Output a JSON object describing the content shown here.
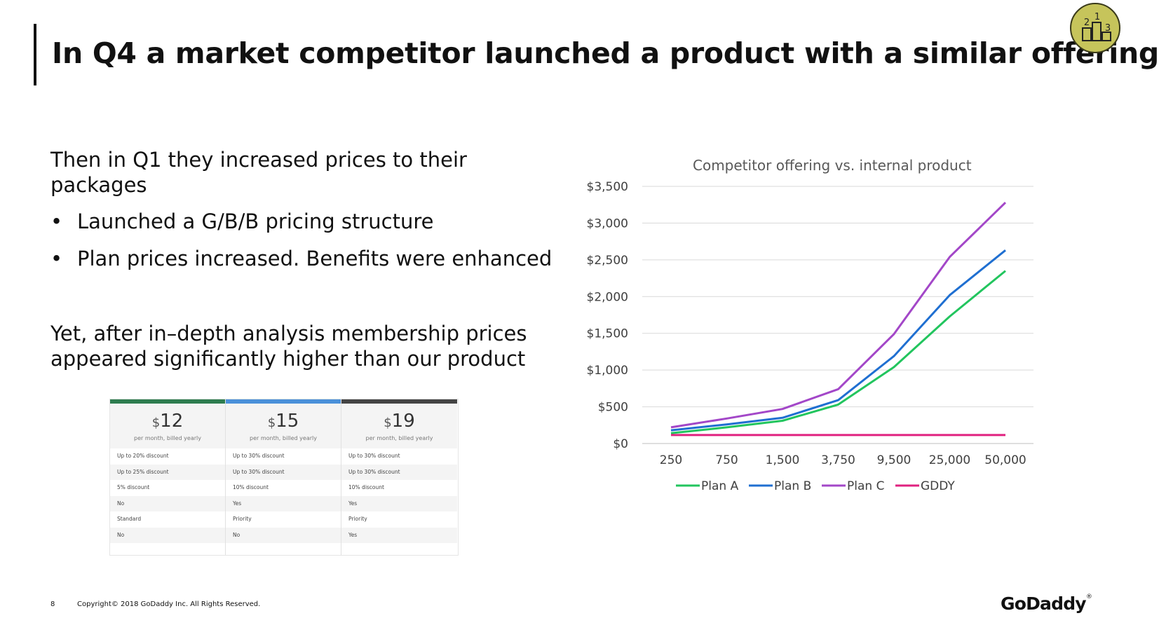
{
  "slide": {
    "title": "In Q4 a market competitor launched a product with a similar offering",
    "intro": "Then in Q1 they increased prices to their packages",
    "bullets": [
      "Launched a G/B/B pricing structure",
      "Plan prices increased. Benefits were enhanced"
    ],
    "conclusion": "Yet, after in–depth analysis membership prices appeared significantly higher than our product",
    "badge_icon": "podium-icon",
    "badge_numbers": [
      "1",
      "2",
      "3"
    ],
    "badge_color": "#c6c45b"
  },
  "pricing_table": {
    "plans": [
      {
        "currency": "$",
        "price": "12",
        "billing": "per month, billed yearly",
        "color": "#2e7d4f",
        "rows": [
          "Up to 20% discount",
          "Up to 25% discount",
          "5% discount",
          "No",
          "Standard",
          "No"
        ]
      },
      {
        "currency": "$",
        "price": "15",
        "billing": "per month, billed yearly",
        "color": "#4a90d9",
        "rows": [
          "Up to 30% discount",
          "Up to 30% discount",
          "10% discount",
          "Yes",
          "Priority",
          "No"
        ]
      },
      {
        "currency": "$",
        "price": "19",
        "billing": "per month, billed yearly",
        "color": "#444444",
        "rows": [
          "Up to 30% discount",
          "Up to 30% discount",
          "10% discount",
          "Yes",
          "Priority",
          "Yes"
        ]
      }
    ]
  },
  "chart_data": {
    "type": "line",
    "title": "Competitor offering vs. internal product",
    "xlabel": "",
    "ylabel": "",
    "categories": [
      "250",
      "750",
      "1,500",
      "3,750",
      "9,500",
      "25,000",
      "50,000"
    ],
    "ylim": [
      0,
      3500
    ],
    "yticks": [
      0,
      500,
      1000,
      1500,
      2000,
      2500,
      3000,
      3500
    ],
    "ytick_labels": [
      "$0",
      "$500",
      "$1,000",
      "$1,500",
      "$2,000",
      "$2,500",
      "$3,000",
      "$3,500"
    ],
    "grid": true,
    "legend": "bottom",
    "series": [
      {
        "name": "Plan A",
        "color": "#22c55e",
        "values": [
          140,
          220,
          310,
          530,
          1040,
          1730,
          2350
        ]
      },
      {
        "name": "Plan B",
        "color": "#1f6fd1",
        "values": [
          180,
          260,
          350,
          590,
          1190,
          2020,
          2630
        ]
      },
      {
        "name": "Plan C",
        "color": "#a347c8",
        "values": [
          220,
          340,
          470,
          740,
          1490,
          2540,
          3280
        ]
      },
      {
        "name": "GDDY",
        "color": "#e0217f",
        "values": [
          115,
          115,
          115,
          115,
          115,
          115,
          115
        ]
      }
    ]
  },
  "footer": {
    "page_number": "8",
    "copyright": "Copyright© 2018 GoDaddy Inc.   All Rights Reserved.",
    "logo_text": "GoDaddy",
    "logo_mark": "®"
  }
}
